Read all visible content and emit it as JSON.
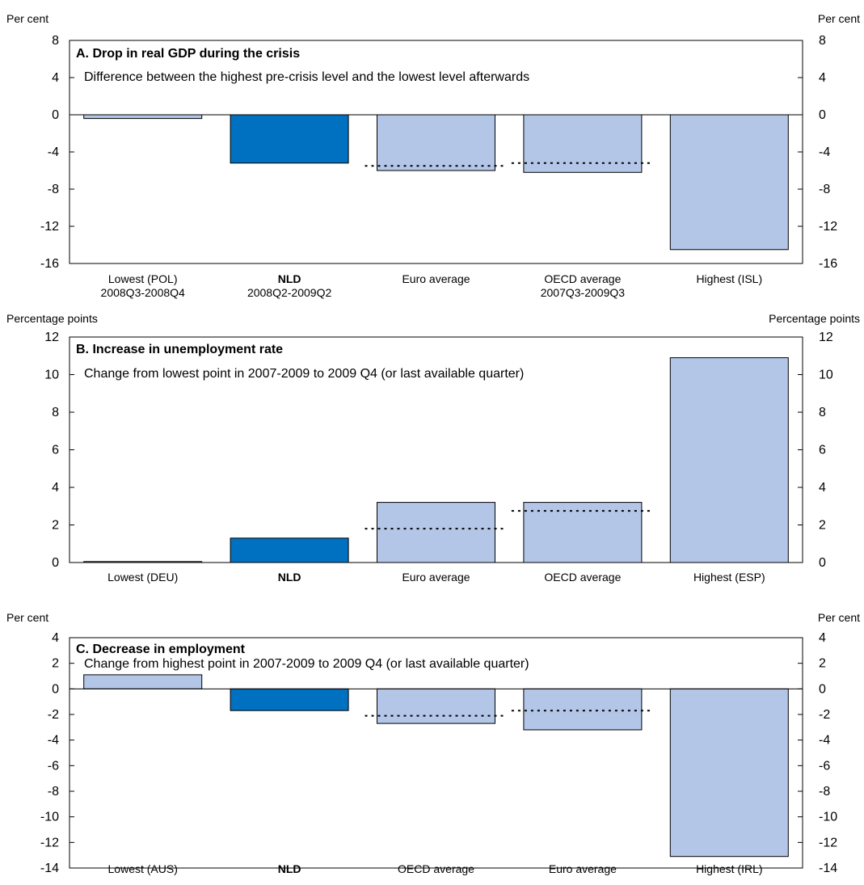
{
  "chart_data": [
    {
      "type": "bar",
      "title": "A. Drop in real GDP during the crisis",
      "subtitle": "Difference between the highest pre-crisis level and the lowest level afterwards",
      "unit_left": "Per cent",
      "unit_right": "Per cent",
      "ylim": [
        -16,
        8
      ],
      "yticks": [
        8,
        4,
        0,
        -4,
        -8,
        -12,
        -16
      ],
      "categories": [
        {
          "label": "Lowest (POL)",
          "sublabel": "2008Q3-2008Q4",
          "bold": false
        },
        {
          "label": "NLD",
          "sublabel": "2008Q2-2009Q2",
          "bold": true
        },
        {
          "label": "Euro average",
          "sublabel": "",
          "bold": false
        },
        {
          "label": "OECD average",
          "sublabel": "2007Q3-2009Q3",
          "bold": false
        },
        {
          "label": "Highest (ISL)",
          "sublabel": "",
          "bold": false
        }
      ],
      "values": [
        -0.4,
        -5.2,
        -6.0,
        -6.2,
        -14.5
      ],
      "highlight_index": 1,
      "reference_lines": [
        {
          "category_index": 2,
          "value": -5.5
        },
        {
          "category_index": 3,
          "value": -5.2
        }
      ],
      "grid": false,
      "legend": "none"
    },
    {
      "type": "bar",
      "title": "B. Increase in unemployment rate",
      "subtitle": "Change from lowest point in 2007-2009 to 2009 Q4 (or last available quarter)",
      "unit_left": "Percentage points",
      "unit_right": "Percentage points",
      "ylim": [
        0,
        12
      ],
      "yticks": [
        12,
        10,
        8,
        6,
        4,
        2,
        0
      ],
      "categories": [
        {
          "label": "Lowest (DEU)",
          "sublabel": "",
          "bold": false
        },
        {
          "label": "NLD",
          "sublabel": "",
          "bold": true
        },
        {
          "label": "Euro average",
          "sublabel": "",
          "bold": false
        },
        {
          "label": "OECD average",
          "sublabel": "",
          "bold": false
        },
        {
          "label": "Highest (ESP)",
          "sublabel": "",
          "bold": false
        }
      ],
      "values": [
        0.05,
        1.3,
        3.2,
        3.2,
        10.9
      ],
      "highlight_index": 1,
      "reference_lines": [
        {
          "category_index": 2,
          "value": 1.8
        },
        {
          "category_index": 3,
          "value": 2.75
        }
      ],
      "grid": false,
      "legend": "none"
    },
    {
      "type": "bar",
      "title": "C. Decrease in employment",
      "subtitle": "Change from highest point in 2007-2009 to 2009 Q4 (or last available quarter)",
      "unit_left": "Per cent",
      "unit_right": "Per cent",
      "ylim": [
        -14,
        4
      ],
      "yticks": [
        4,
        2,
        0,
        -2,
        -4,
        -6,
        -8,
        -10,
        -12,
        -14
      ],
      "categories": [
        {
          "label": "Lowest (AUS)",
          "sublabel": "",
          "bold": false
        },
        {
          "label": "NLD",
          "sublabel": "",
          "bold": true
        },
        {
          "label": "OECD average",
          "sublabel": "",
          "bold": false
        },
        {
          "label": "Euro average",
          "sublabel": "",
          "bold": false
        },
        {
          "label": "Highest (IRL)",
          "sublabel": "",
          "bold": false
        }
      ],
      "values": [
        1.1,
        -1.7,
        -2.7,
        -3.2,
        -13.1
      ],
      "highlight_index": 1,
      "reference_lines": [
        {
          "category_index": 2,
          "value": -2.1
        },
        {
          "category_index": 3,
          "value": -1.7
        }
      ],
      "grid": false,
      "legend": "none"
    }
  ],
  "colors": {
    "bar": "#b4c6e7",
    "highlight": "#0070c0",
    "outline": "#000000",
    "reference_line": "#000000"
  }
}
